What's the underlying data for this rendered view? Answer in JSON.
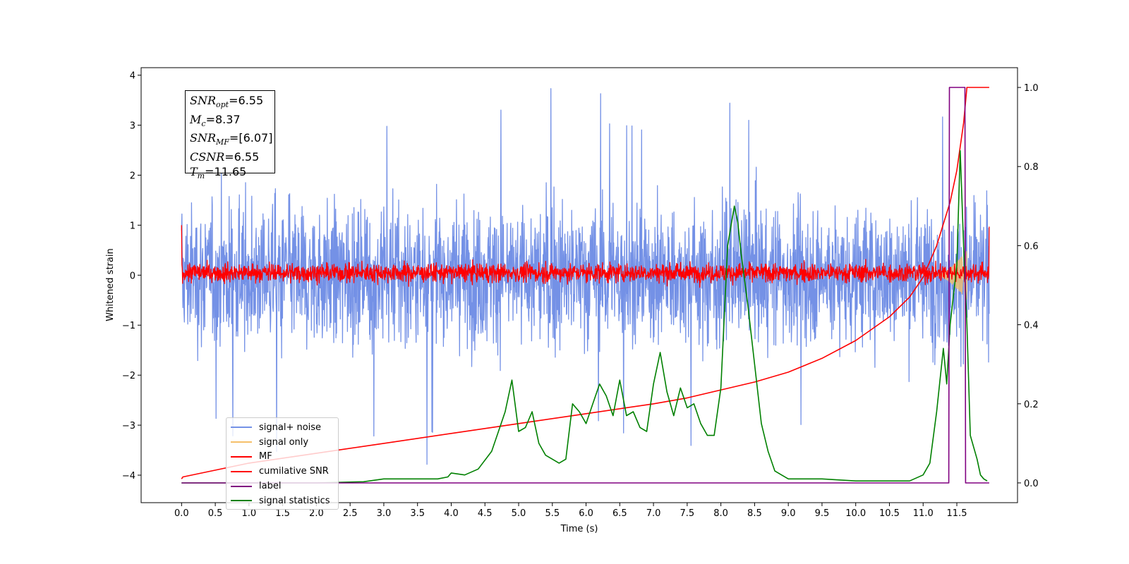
{
  "chart_data": {
    "type": "line",
    "xlabel": "Time (s)",
    "ylabel": "Whitened strain",
    "xlim": [
      -0.6,
      12.4
    ],
    "ylim": [
      -4.55,
      4.15
    ],
    "y2lim": [
      -0.05,
      1.05
    ],
    "x_ticks": [
      0.0,
      0.5,
      1.0,
      1.5,
      2.0,
      2.5,
      3.0,
      3.5,
      4.0,
      4.5,
      5.0,
      5.5,
      6.0,
      6.5,
      7.0,
      7.5,
      8.0,
      8.5,
      9.0,
      9.5,
      10.0,
      10.5,
      11.0,
      11.5
    ],
    "x_tick_labels": [
      "0.0",
      "0.5",
      "1.0",
      "1.5",
      "2.0",
      "2.5",
      "3.0",
      "3.5",
      "4.0",
      "4.5",
      "5.0",
      "5.5",
      "6.0",
      "6.5",
      "7.0",
      "7.5",
      "8.0",
      "8.5",
      "9.0",
      "9.5",
      "10.0",
      "10.5",
      "11.0",
      "11.5"
    ],
    "y_ticks": [
      4,
      3,
      2,
      1,
      0,
      -1,
      -2,
      -3,
      -4
    ],
    "y_tick_labels": [
      "4",
      "3",
      "2",
      "1",
      "0",
      "−1",
      "−2",
      "−3",
      "−4"
    ],
    "y2_ticks": [
      1.0,
      0.8,
      0.6,
      0.4,
      0.2,
      0.0
    ],
    "y2_tick_labels": [
      "1.0",
      "0.8",
      "0.6",
      "0.4",
      "0.2",
      "0.0"
    ],
    "annotation": {
      "snr_opt": "6.55",
      "mc": "8.37",
      "snr_mf": "[6.07]",
      "csnr": "6.55",
      "tm": "11.65"
    },
    "legend": [
      "signal+ noise",
      "signal only",
      "MF",
      "cumilative SNR",
      "label",
      "signal statistics"
    ],
    "legend_position": "lower-left",
    "series": [
      {
        "name": "signal+ noise",
        "axis": "left",
        "color": "#7491e6",
        "kind": "noise",
        "x_range": [
          0.0,
          11.98
        ],
        "typical_range": [
          -2.4,
          2.4
        ],
        "extremes": [
          -4.1,
          3.8
        ]
      },
      {
        "name": "signal only",
        "axis": "left",
        "color": "#f5c06a",
        "kind": "chirp",
        "x_range": [
          11.2,
          11.65
        ],
        "amplitude_max": 0.5
      },
      {
        "name": "MF",
        "axis": "left",
        "color": "#ff0000",
        "kind": "noise",
        "x_range": [
          0.0,
          11.98
        ],
        "typical_range": [
          -0.25,
          0.45
        ],
        "start_value": 1.0,
        "end_value": 0.97
      },
      {
        "name": "cumilative SNR",
        "axis": "right",
        "color": "#ff0000",
        "x": [
          0.0,
          0.02,
          1.0,
          2.0,
          3.0,
          4.0,
          5.0,
          6.0,
          7.0,
          7.5,
          8.0,
          8.5,
          9.0,
          9.5,
          10.0,
          10.5,
          10.8,
          11.0,
          11.2,
          11.4,
          11.5,
          11.6,
          11.65,
          11.98
        ],
        "y": [
          0.01,
          0.015,
          0.05,
          0.075,
          0.1,
          0.125,
          0.15,
          0.175,
          0.2,
          0.215,
          0.235,
          0.255,
          0.28,
          0.315,
          0.36,
          0.42,
          0.47,
          0.52,
          0.6,
          0.71,
          0.79,
          0.91,
          1.0,
          1.0
        ]
      },
      {
        "name": "label",
        "axis": "right",
        "color": "#800080",
        "x": [
          0.0,
          11.38,
          11.39,
          11.62,
          11.63,
          11.98
        ],
        "y": [
          0.0,
          0.0,
          1.0,
          1.0,
          0.0,
          0.0
        ]
      },
      {
        "name": "signal statistics",
        "axis": "right",
        "color": "#008000",
        "x": [
          0.0,
          1.0,
          2.0,
          2.7,
          3.0,
          3.5,
          3.8,
          3.95,
          4.0,
          4.2,
          4.4,
          4.6,
          4.7,
          4.8,
          4.9,
          5.0,
          5.1,
          5.2,
          5.3,
          5.4,
          5.5,
          5.6,
          5.7,
          5.8,
          5.9,
          6.0,
          6.1,
          6.2,
          6.3,
          6.4,
          6.5,
          6.6,
          6.7,
          6.8,
          6.9,
          7.0,
          7.1,
          7.2,
          7.3,
          7.4,
          7.5,
          7.6,
          7.7,
          7.8,
          7.9,
          8.0,
          8.1,
          8.2,
          8.25,
          8.3,
          8.4,
          8.5,
          8.6,
          8.7,
          8.8,
          8.9,
          9.0,
          9.2,
          9.5,
          10.0,
          10.5,
          10.8,
          11.0,
          11.1,
          11.2,
          11.3,
          11.35,
          11.4,
          11.5,
          11.55,
          11.6,
          11.65,
          11.7,
          11.8,
          11.85,
          11.9,
          11.95
        ],
        "y": [
          0.0,
          0.0,
          0.0,
          0.003,
          0.01,
          0.01,
          0.01,
          0.015,
          0.025,
          0.02,
          0.035,
          0.08,
          0.13,
          0.18,
          0.26,
          0.13,
          0.14,
          0.18,
          0.1,
          0.07,
          0.06,
          0.05,
          0.06,
          0.2,
          0.18,
          0.15,
          0.2,
          0.25,
          0.22,
          0.17,
          0.26,
          0.17,
          0.18,
          0.14,
          0.13,
          0.25,
          0.33,
          0.23,
          0.17,
          0.24,
          0.19,
          0.2,
          0.15,
          0.12,
          0.12,
          0.24,
          0.6,
          0.7,
          0.66,
          0.58,
          0.45,
          0.3,
          0.15,
          0.08,
          0.03,
          0.02,
          0.01,
          0.01,
          0.01,
          0.005,
          0.005,
          0.005,
          0.02,
          0.05,
          0.18,
          0.34,
          0.25,
          0.4,
          0.55,
          0.84,
          0.6,
          0.4,
          0.12,
          0.06,
          0.02,
          0.01,
          0.005
        ]
      }
    ]
  }
}
